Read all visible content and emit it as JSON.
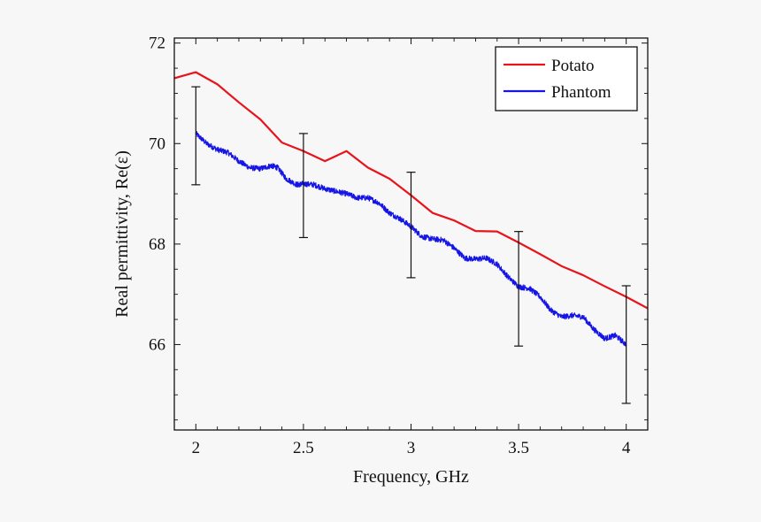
{
  "chart_data": {
    "type": "line",
    "title": "",
    "xlabel": "Frequency, GHz",
    "ylabel": "Real permittivity, Re(ε)",
    "xlim": [
      1.9,
      4.1
    ],
    "ylim": [
      64.3,
      72.1
    ],
    "xticks": [
      2,
      2.5,
      3,
      3.5,
      4
    ],
    "xtick_labels": [
      "2",
      "2.5",
      "3",
      "3.5",
      "4"
    ],
    "yticks": [
      66,
      68,
      70,
      72
    ],
    "ytick_labels": [
      "66",
      "68",
      "70",
      "72"
    ],
    "grid": false,
    "legend_position": "top-right",
    "series": [
      {
        "name": "Potato",
        "color": "#e8141c",
        "x": [
          1.9,
          2.0,
          2.1,
          2.2,
          2.3,
          2.4,
          2.5,
          2.6,
          2.7,
          2.8,
          2.9,
          3.0,
          3.1,
          3.2,
          3.3,
          3.4,
          3.5,
          3.6,
          3.7,
          3.8,
          3.9,
          4.0,
          4.1
        ],
        "y": [
          71.3,
          71.42,
          71.18,
          70.82,
          70.48,
          70.02,
          69.85,
          69.65,
          69.85,
          69.52,
          69.3,
          68.97,
          68.62,
          68.47,
          68.26,
          68.25,
          68.03,
          67.8,
          67.56,
          67.38,
          67.16,
          66.95,
          66.72
        ]
      },
      {
        "name": "Phantom",
        "color": "#1515e6",
        "noisy": true,
        "x": [
          2.0,
          2.05,
          2.1,
          2.15,
          2.2,
          2.25,
          2.3,
          2.35,
          2.38,
          2.42,
          2.47,
          2.5,
          2.55,
          2.6,
          2.65,
          2.7,
          2.75,
          2.8,
          2.85,
          2.9,
          2.95,
          3.0,
          3.05,
          3.1,
          3.15,
          3.2,
          3.25,
          3.3,
          3.35,
          3.4,
          3.45,
          3.5,
          3.55,
          3.6,
          3.65,
          3.7,
          3.75,
          3.8,
          3.85,
          3.9,
          3.95,
          4.0
        ],
        "y": [
          70.2,
          70.0,
          69.88,
          69.82,
          69.65,
          69.52,
          69.5,
          69.56,
          69.52,
          69.3,
          69.18,
          69.2,
          69.18,
          69.1,
          69.05,
          69.0,
          68.92,
          68.92,
          68.82,
          68.62,
          68.5,
          68.35,
          68.15,
          68.1,
          68.08,
          67.92,
          67.72,
          67.7,
          67.72,
          67.6,
          67.35,
          67.15,
          67.12,
          66.95,
          66.68,
          66.55,
          66.58,
          66.55,
          66.3,
          66.12,
          66.18,
          66.0
        ]
      }
    ],
    "error_bars": {
      "x": [
        2.0,
        2.5,
        3.0,
        3.5,
        4.0
      ],
      "lower": [
        69.18,
        68.13,
        67.33,
        65.97,
        64.83
      ],
      "upper": [
        71.13,
        70.2,
        69.43,
        68.25,
        67.17
      ]
    }
  }
}
